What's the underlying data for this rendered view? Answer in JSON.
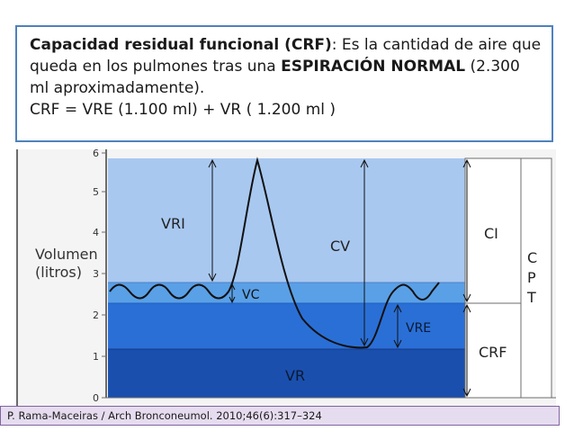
{
  "definition": {
    "term": "Capacidad residual funcional (CRF)",
    "text1": ": Es la cantidad de aire que queda en los pulmones tras una ",
    "emphasis1": "ESPIRACIÓN NORMAL",
    "text2": " (2.300 ml aproximadamente).",
    "formula": "CRF = VRE (1.100 ml) + VR ( 1.200 ml )"
  },
  "diagram": {
    "axis_title_line1": "Volumen",
    "axis_title_line2": "(litros)",
    "ticks": [
      "0",
      "1",
      "2",
      "3",
      "4",
      "5",
      "6"
    ],
    "labels": {
      "vri": "VRI",
      "vc": "VC",
      "cv": "CV",
      "vre": "VRE",
      "vr": "VR",
      "ci": "CI",
      "crf": "CRF",
      "cpt_c": "C",
      "cpt_p": "P",
      "cpt_t": "T"
    },
    "colors": {
      "vri_band": "#a8c8f0",
      "vc_band": "#5aa0e6",
      "vre_band": "#2a6fd6",
      "vr_band": "#1a4fae"
    }
  },
  "citation": "P. Rama-Maceiras / Arch Bronconeumol. 2010;46(6):317–324"
}
